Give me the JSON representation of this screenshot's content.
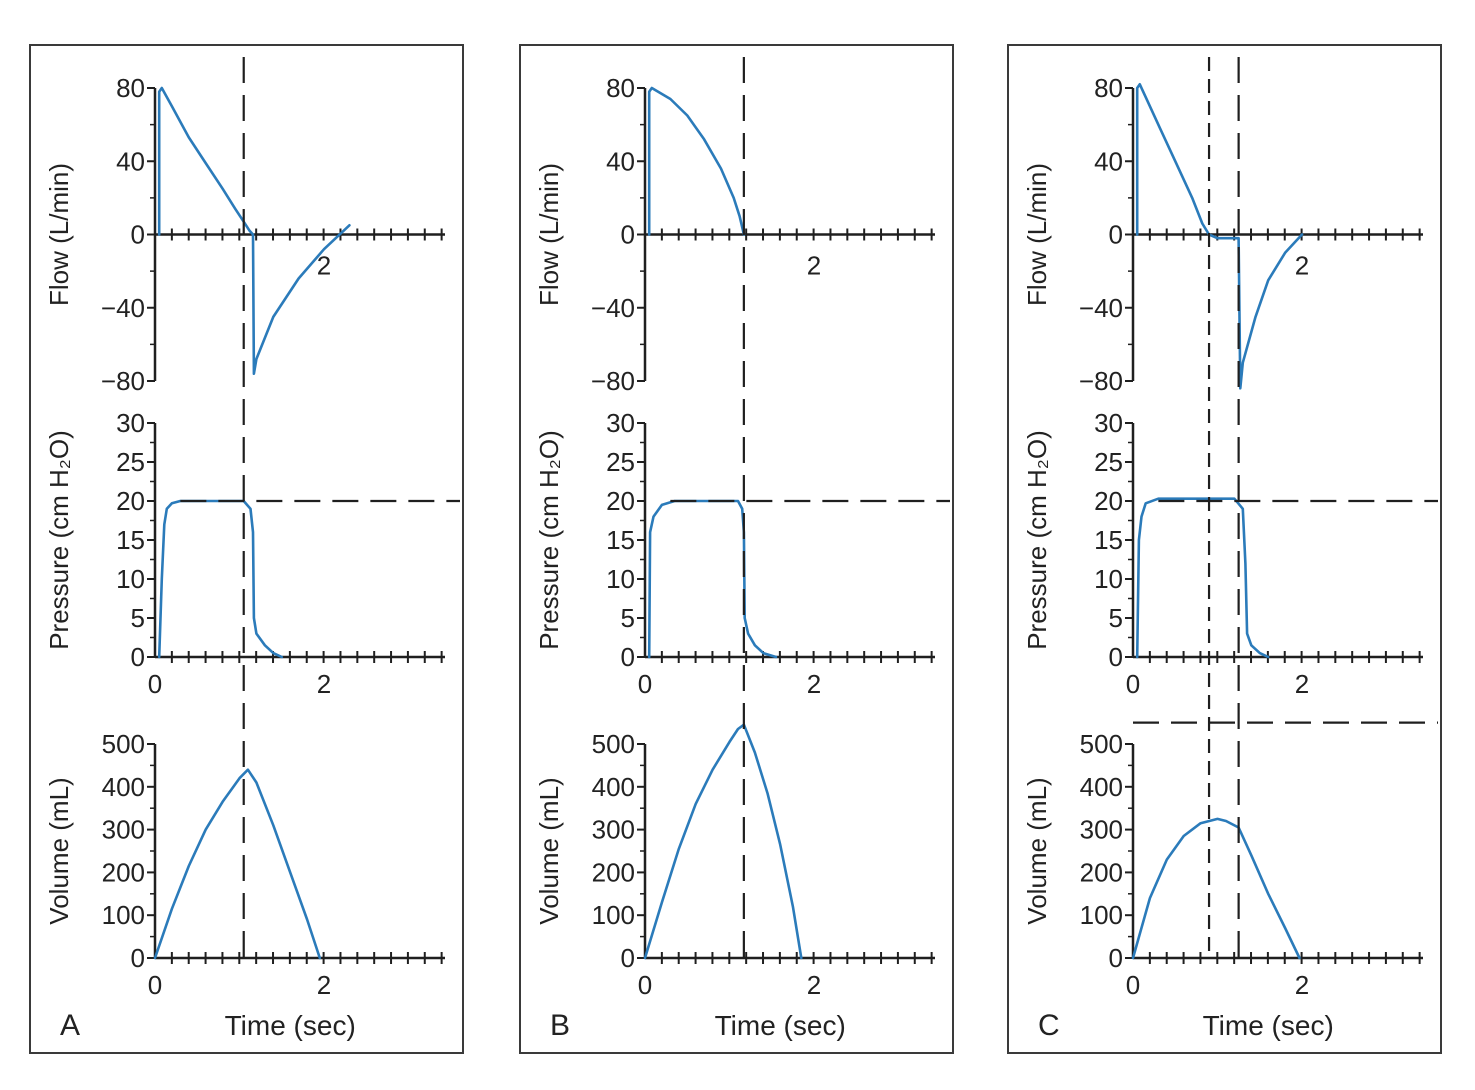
{
  "colors": {
    "trace": "#2b7bba",
    "ink": "#1f1f1f"
  },
  "chart_data": [
    {
      "type": "line",
      "panel": "A",
      "xlabel": "Time (sec)",
      "x_ticks": [
        "0",
        "2"
      ],
      "xlim": [
        0,
        3.4
      ],
      "guides": {
        "x": [
          1.05
        ],
        "pressure_y": 20
      },
      "subplots": [
        {
          "ylabel": "Flow (L/min)",
          "ylim": [
            -80,
            80
          ],
          "yticks": [
            "80",
            "40",
            "0",
            "−40",
            "−80"
          ],
          "series": [
            {
              "x": [
                0.05,
                0.05,
                0.08,
                0.2,
                0.4,
                0.6,
                0.8,
                0.95,
                1.05,
                1.12,
                1.16,
                1.17,
                1.2,
                1.4,
                1.7,
                2.0,
                2.3
              ],
              "y": [
                0,
                78,
                80,
                70,
                53,
                39,
                25,
                14,
                7,
                2,
                0,
                -76,
                -68,
                -45,
                -24,
                -8,
                5
              ]
            }
          ]
        },
        {
          "ylabel": "Pressure (cm H₂O)",
          "ylim": [
            0,
            30
          ],
          "yticks": [
            "30",
            "25",
            "20",
            "15",
            "10",
            "5",
            "0"
          ],
          "series": [
            {
              "x": [
                0.05,
                0.08,
                0.11,
                0.14,
                0.2,
                0.3,
                1.05,
                1.13,
                1.16,
                1.17,
                1.2,
                1.3,
                1.4,
                1.5
              ],
              "y": [
                0,
                10,
                17,
                19,
                19.7,
                20,
                20,
                19,
                16,
                5,
                3,
                1.5,
                0.5,
                0
              ]
            }
          ]
        },
        {
          "ylabel": "Volume (mL)",
          "ylim": [
            0,
            500
          ],
          "yticks": [
            "500",
            "400",
            "300",
            "200",
            "100",
            "0"
          ],
          "series": [
            {
              "x": [
                0,
                0.2,
                0.4,
                0.6,
                0.8,
                1.0,
                1.1,
                1.2,
                1.4,
                1.6,
                1.8,
                1.95
              ],
              "y": [
                0,
                115,
                215,
                300,
                365,
                420,
                440,
                410,
                310,
                200,
                90,
                0
              ]
            }
          ]
        }
      ]
    },
    {
      "type": "line",
      "panel": "B",
      "xlabel": "Time (sec)",
      "x_ticks": [
        "0",
        "2"
      ],
      "xlim": [
        0,
        3.4
      ],
      "guides": {
        "x": [
          1.17
        ],
        "pressure_y": 20
      },
      "subplots": [
        {
          "ylabel": "Flow (L/min)",
          "ylim": [
            -80,
            80
          ],
          "yticks": [
            "80",
            "40",
            "0",
            "−40",
            "−80"
          ],
          "series": [
            {
              "x": [
                0.05,
                0.05,
                0.08,
                0.3,
                0.5,
                0.7,
                0.9,
                1.05,
                1.12,
                1.17
              ],
              "y": [
                0,
                78,
                80,
                74,
                65,
                52,
                36,
                20,
                10,
                0
              ]
            }
          ]
        },
        {
          "ylabel": "Pressure (cm H₂O)",
          "ylim": [
            0,
            30
          ],
          "yticks": [
            "30",
            "25",
            "20",
            "15",
            "10",
            "5",
            "0"
          ],
          "series": [
            {
              "x": [
                0.05,
                0.06,
                0.1,
                0.2,
                0.35,
                1.1,
                1.15,
                1.17,
                1.18,
                1.22,
                1.3,
                1.4,
                1.55
              ],
              "y": [
                0,
                16,
                18,
                19.5,
                20,
                20,
                19,
                16,
                5,
                3,
                1.5,
                0.5,
                0
              ]
            }
          ]
        },
        {
          "ylabel": "Volume (mL)",
          "ylim": [
            0,
            500
          ],
          "yticks": [
            "500",
            "400",
            "300",
            "200",
            "100",
            "0"
          ],
          "series": [
            {
              "x": [
                0,
                0.2,
                0.4,
                0.6,
                0.8,
                1.0,
                1.1,
                1.17,
                1.3,
                1.45,
                1.6,
                1.75,
                1.85
              ],
              "y": [
                0,
                130,
                255,
                360,
                440,
                505,
                535,
                545,
                480,
                385,
                265,
                120,
                0
              ]
            }
          ]
        }
      ]
    },
    {
      "type": "line",
      "panel": "C",
      "xlabel": "Time (sec)",
      "x_ticks": [
        "0",
        "2"
      ],
      "xlim": [
        0,
        3.4
      ],
      "guides": {
        "x": [
          0.9,
          1.25
        ],
        "pressure_y": 20,
        "volume_y": 550
      },
      "subplots": [
        {
          "ylabel": "Flow (L/min)",
          "ylim": [
            -80,
            80
          ],
          "yticks": [
            "80",
            "40",
            "0",
            "−40",
            "−80"
          ],
          "series": [
            {
              "x": [
                0.05,
                0.05,
                0.08,
                0.3,
                0.5,
                0.7,
                0.82,
                0.9,
                1.0,
                1.25,
                1.27,
                1.3,
                1.45,
                1.6,
                1.8,
                2.0
              ],
              "y": [
                0,
                80,
                82,
                60,
                40,
                20,
                6,
                0,
                -2,
                -2,
                -84,
                -70,
                -45,
                -25,
                -10,
                0
              ]
            }
          ]
        },
        {
          "ylabel": "Pressure (cm H₂O)",
          "ylim": [
            0,
            30
          ],
          "yticks": [
            "30",
            "25",
            "20",
            "15",
            "10",
            "5",
            "0"
          ],
          "series": [
            {
              "x": [
                0.05,
                0.07,
                0.1,
                0.15,
                0.3,
                1.2,
                1.3,
                1.33,
                1.35,
                1.4,
                1.5,
                1.6
              ],
              "y": [
                0,
                15,
                18,
                19.7,
                20.3,
                20.3,
                19,
                12,
                3,
                1.5,
                0.5,
                0
              ]
            }
          ]
        },
        {
          "ylabel": "Volume (mL)",
          "ylim": [
            0,
            500
          ],
          "yticks": [
            "500",
            "400",
            "300",
            "200",
            "100",
            "0"
          ],
          "series": [
            {
              "x": [
                0,
                0.2,
                0.4,
                0.6,
                0.8,
                1.0,
                1.1,
                1.25,
                1.4,
                1.6,
                1.8,
                1.97
              ],
              "y": [
                0,
                140,
                230,
                285,
                315,
                325,
                320,
                305,
                240,
                150,
                70,
                0
              ]
            }
          ]
        }
      ]
    }
  ]
}
